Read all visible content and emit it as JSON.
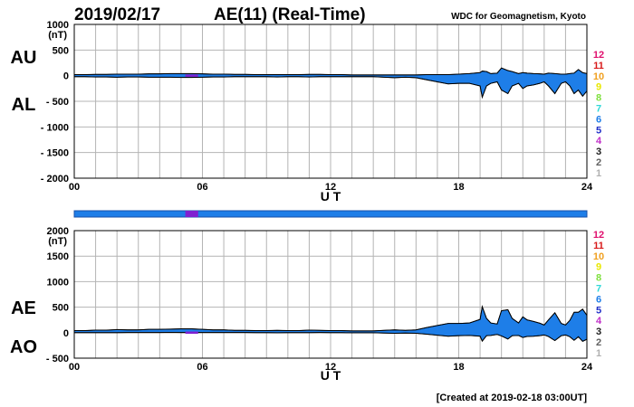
{
  "header": {
    "date": "2019/02/17",
    "title": "AE(11) (Real-Time)",
    "source": "WDC for Geomagnetism, Kyoto"
  },
  "footer": {
    "created": "[Created at 2019-02-18 03:00UT]"
  },
  "station_count_legend": {
    "levels": [
      "12",
      "11",
      "10",
      "9",
      "8",
      "7",
      "6",
      "5",
      "4",
      "3",
      "2",
      "1"
    ],
    "colors": [
      "#e0106e",
      "#d81b1b",
      "#f0a020",
      "#e8e800",
      "#80e040",
      "#30d8d8",
      "#1e7ee8",
      "#2030c8",
      "#c030c8",
      "#202020",
      "#606060",
      "#b0b0b0"
    ]
  },
  "colors": {
    "fill": "#1e7ee8",
    "grid": "#b4b4b4",
    "highlight": "#8020d0",
    "station_bar": "#1e7ee8"
  },
  "chart_data": [
    {
      "type": "area",
      "panel": "AU / AL",
      "side_labels": [
        "AU",
        "AL"
      ],
      "xlabel": "U T",
      "ylabel": "(nT)",
      "xlim": [
        0,
        24
      ],
      "ylim": [
        -2000,
        1000
      ],
      "x_ticks": [
        "00",
        "06",
        "12",
        "18",
        "24"
      ],
      "y_ticks": [
        "1000",
        "500",
        "0",
        "- 500",
        "- 1000",
        "- 1500",
        "- 2000"
      ],
      "x": [
        0,
        0.5,
        1,
        1.5,
        2,
        2.5,
        3,
        3.5,
        4,
        4.5,
        5,
        5.5,
        6,
        6.5,
        7,
        7.5,
        8,
        8.5,
        9,
        9.5,
        10,
        10.5,
        11,
        11.5,
        12,
        12.5,
        13,
        13.5,
        14,
        14.5,
        15,
        15.5,
        16,
        16.5,
        17,
        17.5,
        18,
        18.5,
        19,
        19.1,
        19.3,
        19.5,
        19.8,
        20,
        20.3,
        20.5,
        20.8,
        21,
        21.2,
        21.5,
        21.8,
        22,
        22.2,
        22.5,
        22.8,
        23,
        23.2,
        23.4,
        23.6,
        23.8,
        24
      ],
      "series": [
        {
          "name": "AU",
          "values": [
            20,
            20,
            25,
            25,
            30,
            30,
            30,
            35,
            35,
            40,
            40,
            40,
            35,
            30,
            30,
            25,
            25,
            20,
            20,
            20,
            20,
            20,
            25,
            25,
            20,
            20,
            15,
            15,
            15,
            15,
            15,
            15,
            15,
            20,
            20,
            20,
            30,
            40,
            60,
            90,
            80,
            40,
            50,
            150,
            100,
            80,
            40,
            60,
            50,
            40,
            35,
            30,
            50,
            40,
            30,
            30,
            40,
            50,
            120,
            60,
            40
          ]
        },
        {
          "name": "AL",
          "values": [
            -20,
            -20,
            -25,
            -25,
            -30,
            -25,
            -25,
            -30,
            -30,
            -30,
            -35,
            -35,
            -30,
            -25,
            -25,
            -20,
            -20,
            -20,
            -20,
            -25,
            -20,
            -20,
            -25,
            -20,
            -20,
            -20,
            -20,
            -20,
            -20,
            -30,
            -40,
            -30,
            -40,
            -80,
            -120,
            -160,
            -150,
            -150,
            -200,
            -420,
            -200,
            -150,
            -120,
            -280,
            -350,
            -200,
            -150,
            -250,
            -200,
            -180,
            -150,
            -120,
            -200,
            -350,
            -150,
            -120,
            -200,
            -350,
            -280,
            -400,
            -300
          ]
        }
      ]
    },
    {
      "type": "area",
      "panel": "AE / AO",
      "side_labels": [
        "AE",
        "AO"
      ],
      "xlabel": "U T",
      "ylabel": "(nT)",
      "xlim": [
        0,
        24
      ],
      "ylim": [
        -500,
        2000
      ],
      "x_ticks": [
        "00",
        "06",
        "12",
        "18",
        "24"
      ],
      "y_ticks": [
        "2000",
        "1500",
        "1000",
        "500",
        "0",
        "- 500"
      ],
      "x": [
        0,
        0.5,
        1,
        1.5,
        2,
        2.5,
        3,
        3.5,
        4,
        4.5,
        5,
        5.5,
        6,
        6.5,
        7,
        7.5,
        8,
        8.5,
        9,
        9.5,
        10,
        10.5,
        11,
        11.5,
        12,
        12.5,
        13,
        13.5,
        14,
        14.5,
        15,
        15.5,
        16,
        16.5,
        17,
        17.5,
        18,
        18.5,
        19,
        19.1,
        19.3,
        19.5,
        19.8,
        20,
        20.3,
        20.5,
        20.8,
        21,
        21.2,
        21.5,
        21.8,
        22,
        22.2,
        22.5,
        22.8,
        23,
        23.2,
        23.4,
        23.6,
        23.8,
        24
      ],
      "series": [
        {
          "name": "AE",
          "values": [
            40,
            40,
            50,
            50,
            60,
            55,
            55,
            65,
            65,
            70,
            75,
            75,
            65,
            55,
            55,
            45,
            45,
            40,
            40,
            45,
            40,
            40,
            50,
            45,
            40,
            40,
            35,
            35,
            35,
            45,
            55,
            45,
            55,
            100,
            140,
            180,
            180,
            190,
            260,
            510,
            280,
            190,
            170,
            430,
            450,
            280,
            190,
            310,
            250,
            220,
            185,
            150,
            250,
            390,
            180,
            150,
            240,
            400,
            400,
            460,
            340
          ]
        },
        {
          "name": "AO",
          "values": [
            0,
            0,
            0,
            0,
            0,
            2,
            2,
            2,
            2,
            5,
            2,
            2,
            2,
            2,
            2,
            2,
            2,
            0,
            0,
            -2,
            0,
            0,
            0,
            2,
            0,
            0,
            -2,
            -2,
            -2,
            -8,
            -12,
            -8,
            -12,
            -30,
            -50,
            -70,
            -60,
            -55,
            -70,
            -165,
            -60,
            -55,
            -35,
            -65,
            -125,
            -60,
            -55,
            -95,
            -75,
            -70,
            -58,
            -45,
            -75,
            -155,
            -60,
            -45,
            -80,
            -150,
            -80,
            -170,
            -130
          ]
        }
      ]
    }
  ]
}
